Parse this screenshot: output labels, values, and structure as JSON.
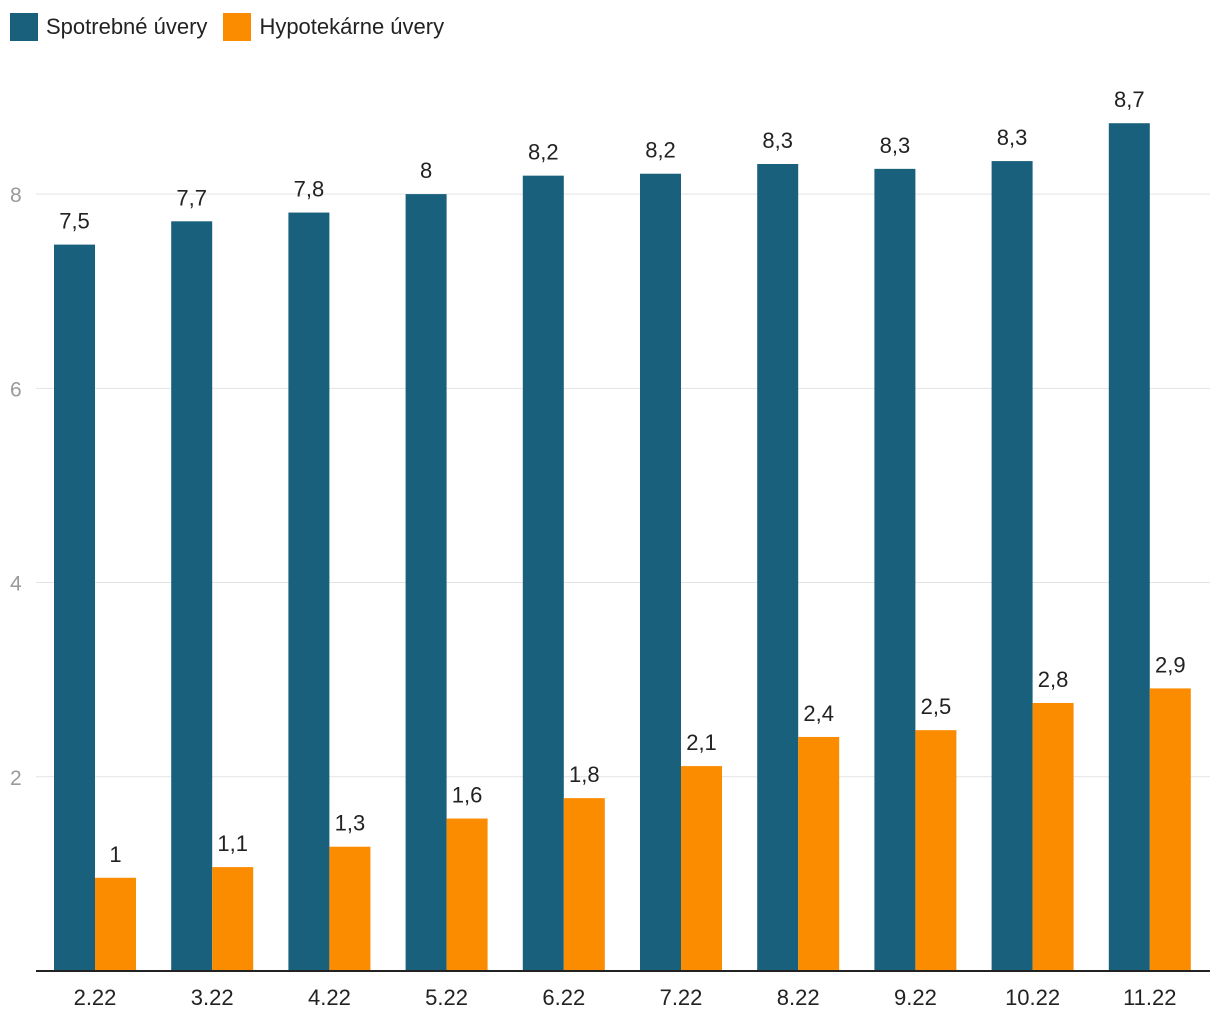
{
  "chart_data": {
    "type": "bar",
    "title": "",
    "xlabel": "",
    "ylabel": "",
    "categories": [
      "2.22",
      "3.22",
      "4.22",
      "5.22",
      "6.22",
      "7.22",
      "8.22",
      "9.22",
      "10.22",
      "11.22"
    ],
    "series": [
      {
        "name": "Spotrebné úvery",
        "color": "#18607b",
        "values": [
          7.48,
          7.72,
          7.81,
          8.0,
          8.19,
          8.21,
          8.31,
          8.26,
          8.34,
          8.73
        ],
        "labels": [
          "7,5",
          "7,7",
          "7,8",
          "8",
          "8,2",
          "8,2",
          "8,3",
          "8,3",
          "8,3",
          "8,7"
        ]
      },
      {
        "name": "Hypotekárne úvery",
        "color": "#fb8c00",
        "values": [
          0.96,
          1.07,
          1.28,
          1.57,
          1.78,
          2.11,
          2.41,
          2.48,
          2.76,
          2.91
        ],
        "labels": [
          "1",
          "1,1",
          "1,3",
          "1,6",
          "1,8",
          "2,1",
          "2,4",
          "2,5",
          "2,8",
          "2,9"
        ]
      }
    ],
    "ylim": [
      0,
      9
    ],
    "yticks": [
      2,
      4,
      6,
      8
    ],
    "ytick_labels": [
      "2",
      "4",
      "6",
      "8"
    ],
    "grid": true,
    "legend": "top-left"
  }
}
